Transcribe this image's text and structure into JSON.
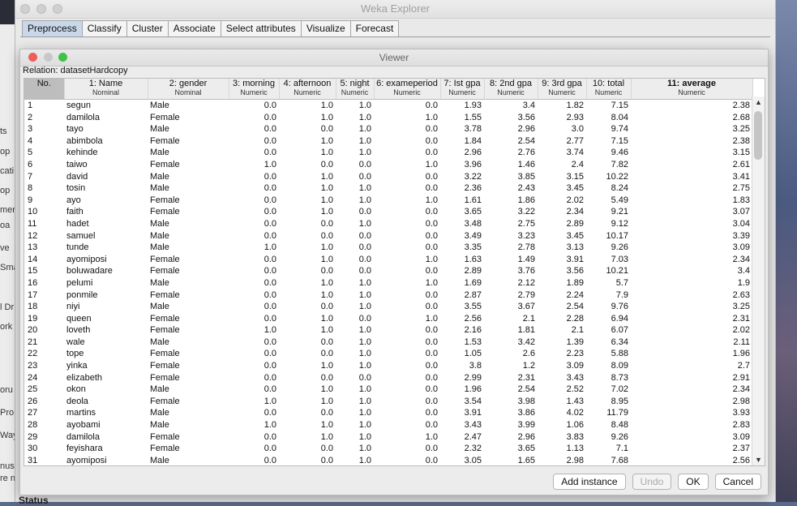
{
  "desktop": {
    "left_fragments": [
      "ts",
      "op",
      "cati",
      "op",
      "mer",
      "oa",
      "ve",
      "Sma",
      "l Dr",
      "ork",
      "oru",
      "Pro",
      "Way",
      "nus",
      "re n"
    ]
  },
  "main_window": {
    "title": "Weka Explorer",
    "tabs": [
      "Preprocess",
      "Classify",
      "Cluster",
      "Associate",
      "Select attributes",
      "Visualize",
      "Forecast"
    ],
    "active_tab": "Preprocess",
    "status_label": "Status"
  },
  "viewer": {
    "title": "Viewer",
    "relation": "Relation: datasetHardcopy",
    "columns": [
      {
        "name": "No.",
        "type": ""
      },
      {
        "name": "1: Name",
        "type": "Nominal"
      },
      {
        "name": "2: gender",
        "type": "Nominal"
      },
      {
        "name": "3: morning",
        "type": "Numeric"
      },
      {
        "name": "4: afternoon",
        "type": "Numeric"
      },
      {
        "name": "5: night",
        "type": "Numeric"
      },
      {
        "name": "6: exameperiod",
        "type": "Numeric"
      },
      {
        "name": "7: Ist gpa",
        "type": "Numeric"
      },
      {
        "name": "8: 2nd gpa",
        "type": "Numeric"
      },
      {
        "name": "9: 3rd gpa",
        "type": "Numeric"
      },
      {
        "name": "10: total",
        "type": "Numeric"
      },
      {
        "name": "11: average",
        "type": "Numeric"
      }
    ],
    "rows": [
      [
        "1",
        "segun",
        "Male",
        "0.0",
        "1.0",
        "1.0",
        "0.0",
        "1.93",
        "3.4",
        "1.82",
        "7.15",
        "2.38"
      ],
      [
        "2",
        "damilola",
        "Female",
        "0.0",
        "1.0",
        "1.0",
        "1.0",
        "1.55",
        "3.56",
        "2.93",
        "8.04",
        "2.68"
      ],
      [
        "3",
        "tayo",
        "Male",
        "0.0",
        "0.0",
        "1.0",
        "0.0",
        "3.78",
        "2.96",
        "3.0",
        "9.74",
        "3.25"
      ],
      [
        "4",
        "abimbola",
        "Female",
        "0.0",
        "1.0",
        "1.0",
        "0.0",
        "1.84",
        "2.54",
        "2.77",
        "7.15",
        "2.38"
      ],
      [
        "5",
        "kehinde",
        "Male",
        "0.0",
        "1.0",
        "1.0",
        "0.0",
        "2.96",
        "2.76",
        "3.74",
        "9.46",
        "3.15"
      ],
      [
        "6",
        "taiwo",
        "Female",
        "1.0",
        "0.0",
        "0.0",
        "1.0",
        "3.96",
        "1.46",
        "2.4",
        "7.82",
        "2.61"
      ],
      [
        "7",
        "david",
        "Male",
        "0.0",
        "1.0",
        "0.0",
        "0.0",
        "3.22",
        "3.85",
        "3.15",
        "10.22",
        "3.41"
      ],
      [
        "8",
        "tosin",
        "Male",
        "0.0",
        "1.0",
        "1.0",
        "0.0",
        "2.36",
        "2.43",
        "3.45",
        "8.24",
        "2.75"
      ],
      [
        "9",
        "ayo",
        "Female",
        "0.0",
        "1.0",
        "1.0",
        "1.0",
        "1.61",
        "1.86",
        "2.02",
        "5.49",
        "1.83"
      ],
      [
        "10",
        "faith",
        "Female",
        "0.0",
        "1.0",
        "0.0",
        "0.0",
        "3.65",
        "3.22",
        "2.34",
        "9.21",
        "3.07"
      ],
      [
        "11",
        "hadet",
        "Male",
        "0.0",
        "0.0",
        "1.0",
        "0.0",
        "3.48",
        "2.75",
        "2.89",
        "9.12",
        "3.04"
      ],
      [
        "12",
        "samuel",
        "Male",
        "0.0",
        "0.0",
        "0.0",
        "0.0",
        "3.49",
        "3.23",
        "3.45",
        "10.17",
        "3.39"
      ],
      [
        "13",
        "tunde",
        "Male",
        "1.0",
        "1.0",
        "0.0",
        "0.0",
        "3.35",
        "2.78",
        "3.13",
        "9.26",
        "3.09"
      ],
      [
        "14",
        "ayomiposi",
        "Female",
        "0.0",
        "1.0",
        "0.0",
        "1.0",
        "1.63",
        "1.49",
        "3.91",
        "7.03",
        "2.34"
      ],
      [
        "15",
        "boluwadare",
        "Female",
        "0.0",
        "0.0",
        "0.0",
        "0.0",
        "2.89",
        "3.76",
        "3.56",
        "10.21",
        "3.4"
      ],
      [
        "16",
        "pelumi",
        "Male",
        "0.0",
        "1.0",
        "1.0",
        "1.0",
        "1.69",
        "2.12",
        "1.89",
        "5.7",
        "1.9"
      ],
      [
        "17",
        "ponmile",
        "Female",
        "0.0",
        "1.0",
        "1.0",
        "0.0",
        "2.87",
        "2.79",
        "2.24",
        "7.9",
        "2.63"
      ],
      [
        "18",
        "niyi",
        "Male",
        "0.0",
        "0.0",
        "1.0",
        "0.0",
        "3.55",
        "3.67",
        "2.54",
        "9.76",
        "3.25"
      ],
      [
        "19",
        "queen",
        "Female",
        "0.0",
        "1.0",
        "0.0",
        "1.0",
        "2.56",
        "2.1",
        "2.28",
        "6.94",
        "2.31"
      ],
      [
        "20",
        "loveth",
        "Female",
        "1.0",
        "1.0",
        "1.0",
        "0.0",
        "2.16",
        "1.81",
        "2.1",
        "6.07",
        "2.02"
      ],
      [
        "21",
        "wale",
        "Male",
        "0.0",
        "0.0",
        "1.0",
        "0.0",
        "1.53",
        "3.42",
        "1.39",
        "6.34",
        "2.11"
      ],
      [
        "22",
        "tope",
        "Female",
        "0.0",
        "0.0",
        "1.0",
        "0.0",
        "1.05",
        "2.6",
        "2.23",
        "5.88",
        "1.96"
      ],
      [
        "23",
        "yinka",
        "Female",
        "0.0",
        "1.0",
        "1.0",
        "0.0",
        "3.8",
        "1.2",
        "3.09",
        "8.09",
        "2.7"
      ],
      [
        "24",
        "elizabeth",
        "Female",
        "0.0",
        "0.0",
        "0.0",
        "0.0",
        "2.99",
        "2.31",
        "3.43",
        "8.73",
        "2.91"
      ],
      [
        "25",
        "okon",
        "Male",
        "0.0",
        "1.0",
        "1.0",
        "0.0",
        "1.96",
        "2.54",
        "2.52",
        "7.02",
        "2.34"
      ],
      [
        "26",
        "deola",
        "Female",
        "1.0",
        "1.0",
        "1.0",
        "0.0",
        "3.54",
        "3.98",
        "1.43",
        "8.95",
        "2.98"
      ],
      [
        "27",
        "martins",
        "Male",
        "0.0",
        "0.0",
        "1.0",
        "0.0",
        "3.91",
        "3.86",
        "4.02",
        "11.79",
        "3.93"
      ],
      [
        "28",
        "ayobami",
        "Male",
        "1.0",
        "1.0",
        "1.0",
        "0.0",
        "3.43",
        "3.99",
        "1.06",
        "8.48",
        "2.83"
      ],
      [
        "29",
        "damilola",
        "Female",
        "0.0",
        "1.0",
        "1.0",
        "1.0",
        "2.47",
        "2.96",
        "3.83",
        "9.26",
        "3.09"
      ],
      [
        "30",
        "feyishara",
        "Female",
        "0.0",
        "0.0",
        "1.0",
        "0.0",
        "2.32",
        "3.65",
        "1.13",
        "7.1",
        "2.37"
      ],
      [
        "31",
        "ayomiposi",
        "Male",
        "0.0",
        "0.0",
        "1.0",
        "0.0",
        "3.05",
        "1.65",
        "2.98",
        "7.68",
        "2.56"
      ]
    ],
    "buttons": {
      "add_instance": "Add instance",
      "undo": "Undo",
      "ok": "OK",
      "cancel": "Cancel"
    },
    "colors": {
      "close": "#ec5f57",
      "minimize": "#c8c8c8",
      "maximize": "#3fc24a",
      "header_selected": "#bdbdbd",
      "active_tab": "#c8d8ea"
    }
  }
}
